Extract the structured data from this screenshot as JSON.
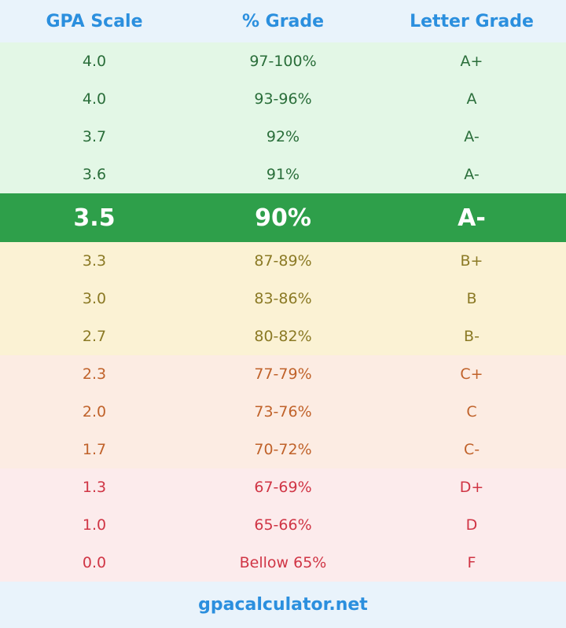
{
  "header": {
    "gpa": "GPA Scale",
    "percent": "% Grade",
    "letter": "Letter Grade"
  },
  "rows": [
    {
      "gpa": "4.0",
      "percent": "97-100%",
      "letter": "A+"
    },
    {
      "gpa": "4.0",
      "percent": "93-96%",
      "letter": "A"
    },
    {
      "gpa": "3.7",
      "percent": "92%",
      "letter": "A-"
    },
    {
      "gpa": "3.6",
      "percent": "91%",
      "letter": "A-"
    },
    {
      "gpa": "3.5",
      "percent": "90%",
      "letter": "A-"
    },
    {
      "gpa": "3.3",
      "percent": "87-89%",
      "letter": "B+"
    },
    {
      "gpa": "3.0",
      "percent": "83-86%",
      "letter": "B"
    },
    {
      "gpa": "2.7",
      "percent": "80-82%",
      "letter": "B-"
    },
    {
      "gpa": "2.3",
      "percent": "77-79%",
      "letter": "C+"
    },
    {
      "gpa": "2.0",
      "percent": "73-76%",
      "letter": "C"
    },
    {
      "gpa": "1.7",
      "percent": "70-72%",
      "letter": "C-"
    },
    {
      "gpa": "1.3",
      "percent": "67-69%",
      "letter": "D+"
    },
    {
      "gpa": "1.0",
      "percent": "65-66%",
      "letter": "D"
    },
    {
      "gpa": "0.0",
      "percent": "Bellow 65%",
      "letter": "F"
    }
  ],
  "footer": {
    "site": "gpacalculator.net"
  },
  "colors": {
    "header_bg": "#e9f3fb",
    "header_text": "#2b8fde",
    "highlight_bg": "#2e9f4a",
    "green_band": "#e3f7e6",
    "yellow_band": "#fbf2d4",
    "orange_band": "#fcece3",
    "red_band": "#fcebec"
  }
}
